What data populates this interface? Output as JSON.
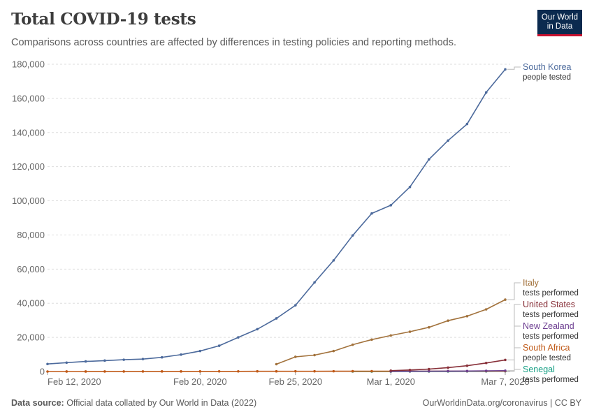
{
  "header": {
    "title": "Total COVID-19 tests",
    "subtitle": "Comparisons across countries are affected by differences in testing policies and reporting methods.",
    "logo_line1": "Our World",
    "logo_line2": "in Data"
  },
  "footer": {
    "source_label": "Data source:",
    "source_text": " Official data collated by Our World in Data (2022)",
    "link": "OurWorldinData.org/coronavirus | CC BY"
  },
  "chart_data": {
    "type": "line",
    "title": "Total COVID-19 tests",
    "xlabel": "",
    "ylabel": "",
    "ylim": [
      0,
      180000
    ],
    "xlim_day": [
      0,
      24
    ],
    "x_note": "day index, day 0 = Feb 12, 2020",
    "yticks": [
      0,
      20000,
      40000,
      60000,
      80000,
      100000,
      120000,
      140000,
      160000,
      180000
    ],
    "ytick_labels": [
      "0",
      "20,000",
      "40,000",
      "60,000",
      "80,000",
      "100,000",
      "120,000",
      "140,000",
      "160,000",
      "180,000"
    ],
    "xticks": [
      0,
      8,
      13,
      18,
      24
    ],
    "xtick_labels": [
      "Feb 12, 2020",
      "Feb 20, 2020",
      "Feb 25, 2020",
      "Mar 1, 2020",
      "Mar 7, 2020"
    ],
    "series": [
      {
        "name": "South Korea",
        "metric": "people tested",
        "color": "#4c6a9c",
        "x": [
          0,
          1,
          2,
          3,
          4,
          5,
          6,
          7,
          8,
          9,
          10,
          11,
          12,
          13,
          14,
          15,
          16,
          17,
          18,
          19,
          20,
          21,
          22,
          23,
          24
        ],
        "y": [
          4400,
          5200,
          5900,
          6400,
          6900,
          7300,
          8300,
          9900,
          12000,
          15100,
          20000,
          24800,
          31100,
          38800,
          52200,
          65100,
          79700,
          92600,
          97400,
          108100,
          124300,
          135300,
          145000,
          163500,
          177000
        ]
      },
      {
        "name": "Italy",
        "metric": "tests performed",
        "color": "#a2723c",
        "x": [
          12,
          13,
          14,
          15,
          16,
          17,
          18,
          19,
          20,
          21,
          22,
          23,
          24
        ],
        "y": [
          4300,
          8600,
          9600,
          12000,
          15700,
          18700,
          21100,
          23300,
          25900,
          29800,
          32400,
          36400,
          42100
        ]
      },
      {
        "name": "United States",
        "metric": "tests performed",
        "color": "#883039",
        "x": [
          18,
          19,
          20,
          21,
          22,
          23,
          24
        ],
        "y": [
          500,
          900,
          1400,
          2300,
          3400,
          5000,
          6800
        ]
      },
      {
        "name": "New Zealand",
        "metric": "tests performed",
        "color": "#6d3e91",
        "x": [
          18,
          19,
          20,
          21,
          22,
          23,
          24
        ],
        "y": [
          100,
          150,
          200,
          250,
          300,
          400,
          500
        ]
      },
      {
        "name": "South Africa",
        "metric": "people tested",
        "color": "#c05917",
        "x": [
          0,
          1,
          2,
          3,
          4,
          5,
          6,
          7,
          8,
          9,
          10,
          11,
          12,
          13,
          14,
          15,
          16,
          17,
          18,
          19,
          20,
          21,
          22,
          23,
          24
        ],
        "y": [
          0,
          10,
          20,
          30,
          40,
          50,
          60,
          70,
          80,
          90,
          100,
          110,
          120,
          130,
          140,
          150,
          160,
          170,
          180,
          190,
          200,
          210,
          220,
          230,
          240
        ]
      },
      {
        "name": "Senegal",
        "metric": "tests performed",
        "color": "#18a085",
        "x": [
          16,
          17,
          18,
          19,
          20,
          21,
          22,
          23,
          24
        ],
        "y": [
          0,
          10,
          20,
          30,
          40,
          60,
          80,
          100,
          150
        ]
      }
    ]
  }
}
